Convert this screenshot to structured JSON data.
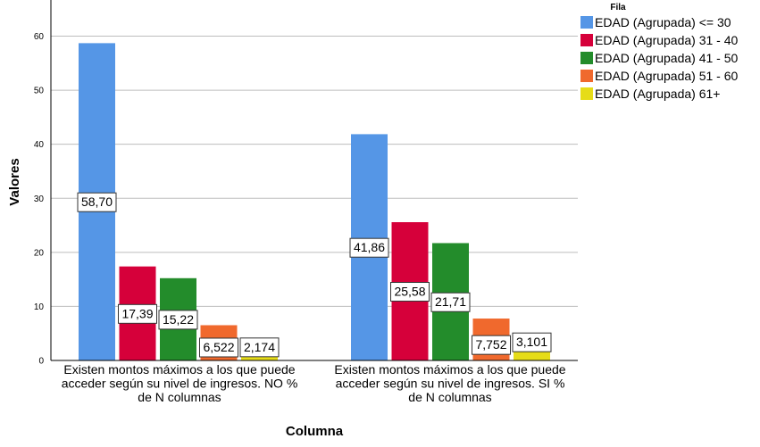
{
  "chart_data": {
    "type": "bar",
    "xlabel": "Columna",
    "ylabel": "Valores",
    "ylim": [
      0,
      66
    ],
    "yticks": [
      0,
      10,
      20,
      30,
      40,
      50,
      60
    ],
    "grid": true,
    "legend": {
      "title": "Fila",
      "placement": "top-right"
    },
    "categories": [
      [
        "Existen montos máximos a los que puede",
        "acceder según su nivel de ingresos. NO %",
        "de N columnas"
      ],
      [
        "Existen montos máximos a los que puede",
        "acceder según su nivel de ingresos. SI %",
        "de N columnas"
      ]
    ],
    "series": [
      {
        "name": "EDAD (Agrupada) <= 30",
        "color": "#5596e6",
        "values": [
          58.7,
          41.86
        ],
        "labels": [
          "58,70",
          "41,86"
        ]
      },
      {
        "name": "EDAD (Agrupada) 31 - 40",
        "color": "#d6003a",
        "values": [
          17.39,
          25.58
        ],
        "labels": [
          "17,39",
          "25,58"
        ]
      },
      {
        "name": "EDAD (Agrupada) 41 - 50",
        "color": "#238c2b",
        "values": [
          15.22,
          21.71
        ],
        "labels": [
          "15,22",
          "21,71"
        ]
      },
      {
        "name": "EDAD (Agrupada) 51 - 60",
        "color": "#f0692d",
        "values": [
          6.522,
          7.752
        ],
        "labels": [
          "6,522",
          "7,752"
        ]
      },
      {
        "name": "EDAD (Agrupada) 61+",
        "color": "#e6dc18",
        "values": [
          2.174,
          3.101
        ],
        "labels": [
          "2,174",
          "3,101"
        ]
      }
    ]
  }
}
